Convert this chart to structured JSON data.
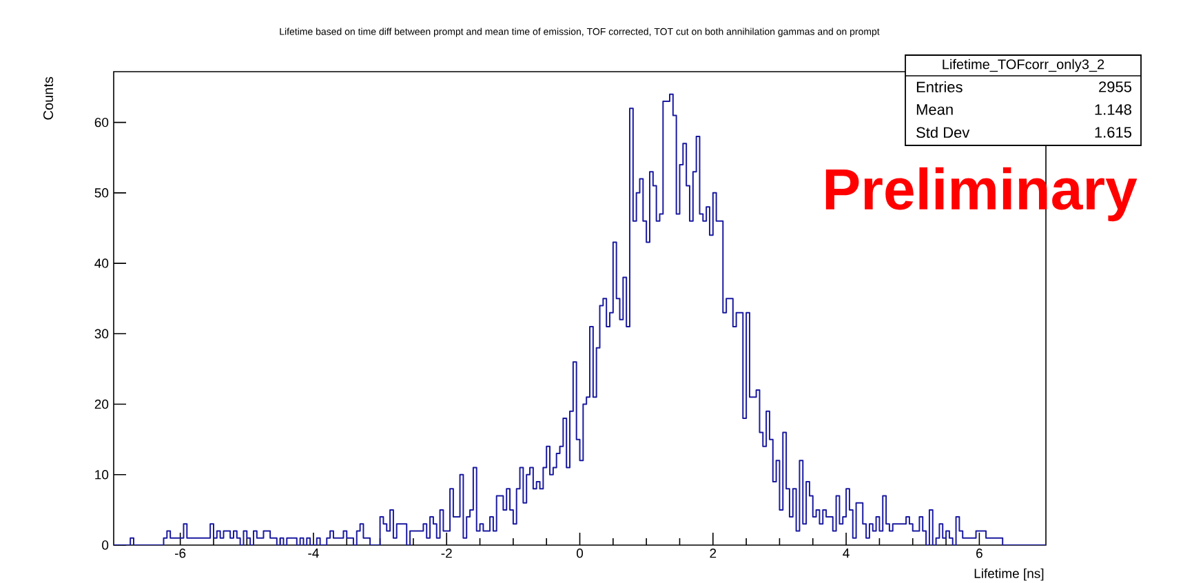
{
  "chart_data": {
    "type": "histogram",
    "title": "Lifetime based on time diff between prompt and mean time of emission, TOF corrected, TOT cut on both annihilation gammas and on prompt",
    "xlabel": "Lifetime [ns]",
    "ylabel": "Counts",
    "color": "#1a1aa0",
    "xlim": [
      -7,
      7
    ],
    "ylim": [
      0,
      67.2
    ],
    "xticks": [
      -6,
      -4,
      -2,
      0,
      2,
      4,
      6
    ],
    "yticks": [
      0,
      10,
      20,
      30,
      40,
      50,
      60
    ],
    "bins": [
      -7,
      -6.95,
      -6.9,
      -6.85,
      -6.8,
      -6.75,
      -6.7,
      -6.65,
      -6.6,
      -6.55,
      -6.5,
      -6.45,
      -6.4,
      -6.35,
      -6.3,
      -6.25,
      -6.2,
      -6.15,
      -6.1,
      -6.05,
      -6,
      -5.95,
      -5.9,
      -5.85,
      -5.8,
      -5.75,
      -5.7,
      -5.65,
      -5.6,
      -5.55,
      -5.5,
      -5.45,
      -5.4,
      -5.35,
      -5.3,
      -5.25,
      -5.2,
      -5.15,
      -5.1,
      -5.05,
      -5,
      -4.95,
      -4.9,
      -4.85,
      -4.8,
      -4.75,
      -4.7,
      -4.65,
      -4.6,
      -4.55,
      -4.5,
      -4.45,
      -4.4,
      -4.35,
      -4.3,
      -4.25,
      -4.2,
      -4.15,
      -4.1,
      -4.05,
      -4,
      -3.95,
      -3.9,
      -3.85,
      -3.8,
      -3.75,
      -3.7,
      -3.65,
      -3.6,
      -3.55,
      -3.5,
      -3.45,
      -3.4,
      -3.35,
      -3.3,
      -3.25,
      -3.2,
      -3.15,
      -3.1,
      -3.05,
      -3,
      -2.95,
      -2.9,
      -2.85,
      -2.8,
      -2.75,
      -2.7,
      -2.65,
      -2.6,
      -2.55,
      -2.5,
      -2.45,
      -2.4,
      -2.35,
      -2.3,
      -2.25,
      -2.2,
      -2.15,
      -2.1,
      -2.05,
      -2,
      -1.95,
      -1.9,
      -1.85,
      -1.8,
      -1.75,
      -1.7,
      -1.65,
      -1.6,
      -1.55,
      -1.5,
      -1.45,
      -1.4,
      -1.35,
      -1.3,
      -1.25,
      -1.2,
      -1.15,
      -1.1,
      -1.05,
      -1,
      -0.95,
      -0.9,
      -0.85,
      -0.8,
      -0.75,
      -0.7,
      -0.65,
      -0.6,
      -0.55,
      -0.5,
      -0.45,
      -0.4,
      -0.35,
      -0.3,
      -0.25,
      -0.2,
      -0.15,
      -0.1,
      -0.05,
      0,
      0.05,
      0.1,
      0.15,
      0.2,
      0.25,
      0.3,
      0.35,
      0.4,
      0.45,
      0.5,
      0.55,
      0.6,
      0.65,
      0.7,
      0.75,
      0.8,
      0.85,
      0.9,
      0.95,
      1,
      1.05,
      1.1,
      1.15,
      1.2,
      1.25,
      1.3,
      1.35,
      1.4,
      1.45,
      1.5,
      1.55,
      1.6,
      1.65,
      1.7,
      1.75,
      1.8,
      1.85,
      1.9,
      1.95,
      2,
      2.05,
      2.1,
      2.15,
      2.2,
      2.25,
      2.3,
      2.35,
      2.4,
      2.45,
      2.5,
      2.55,
      2.6,
      2.65,
      2.7,
      2.75,
      2.8,
      2.85,
      2.9,
      2.95,
      3,
      3.05,
      3.1,
      3.15,
      3.2,
      3.25,
      3.3,
      3.35,
      3.4,
      3.45,
      3.5,
      3.55,
      3.6,
      3.65,
      3.7,
      3.75,
      3.8,
      3.85,
      3.9,
      3.95,
      4,
      4.05,
      4.1,
      4.15,
      4.2,
      4.25,
      4.3,
      4.35,
      4.4,
      4.45,
      4.5,
      4.55,
      4.6,
      4.65,
      4.7,
      4.75,
      4.8,
      4.85,
      4.9,
      4.95,
      5,
      5.05,
      5.1,
      5.15,
      5.2,
      5.25,
      5.3,
      5.35,
      5.4,
      5.45,
      5.5,
      5.55,
      5.6,
      5.65,
      5.7,
      5.75,
      5.8,
      5.85,
      5.9,
      5.95,
      6,
      6.05,
      6.1,
      6.15,
      6.2,
      6.25,
      6.3,
      6.35,
      6.4,
      6.45,
      6.5,
      6.55,
      6.6,
      6.65,
      6.7,
      6.75,
      6.8,
      6.85,
      6.9,
      6.95,
      7
    ],
    "values": [
      0,
      0,
      0,
      0,
      0,
      1,
      0,
      0,
      0,
      0,
      0,
      0,
      0,
      0,
      0,
      1,
      2,
      1,
      1,
      1,
      1,
      3,
      1,
      1,
      1,
      1,
      1,
      1,
      1,
      3,
      1,
      2,
      1,
      2,
      2,
      1,
      2,
      1,
      0,
      2,
      1,
      0,
      2,
      1,
      1,
      2,
      2,
      1,
      1,
      0,
      1,
      0,
      1,
      1,
      1,
      0,
      1,
      0,
      1,
      0,
      0,
      1,
      0,
      0,
      1,
      2,
      1,
      1,
      1,
      2,
      1,
      1,
      0,
      2,
      3,
      1,
      1,
      0,
      0,
      0,
      4,
      3,
      2,
      5,
      1,
      3,
      3,
      3,
      0,
      2,
      2,
      2,
      2,
      3,
      1,
      4,
      3,
      1,
      5,
      2,
      2,
      8,
      4,
      4,
      10,
      1,
      4,
      5,
      11,
      2,
      3,
      2,
      2,
      4,
      2,
      7,
      7,
      5,
      8,
      5,
      3,
      8,
      11,
      6,
      10,
      11,
      8,
      9,
      8,
      11,
      14,
      10,
      11,
      13,
      14,
      18,
      11,
      19,
      26,
      15,
      12,
      20,
      21,
      31,
      21,
      28,
      34,
      35,
      31,
      33,
      43,
      35,
      32,
      38,
      31,
      62,
      46,
      50,
      52,
      46,
      43,
      53,
      51,
      46,
      47,
      63,
      63,
      64,
      61,
      47,
      54,
      57,
      51,
      46,
      53,
      58,
      47,
      46,
      48,
      44,
      50,
      46,
      46,
      33,
      35,
      35,
      31,
      33,
      33,
      18,
      33,
      21,
      21,
      22,
      16,
      14,
      19,
      15,
      9,
      12,
      5,
      16,
      8,
      4,
      8,
      2,
      12,
      3,
      9,
      7,
      4,
      5,
      3,
      5,
      4,
      4,
      2,
      7,
      3,
      4,
      8,
      5,
      1,
      6,
      6,
      3,
      1,
      3,
      2,
      4,
      2,
      7,
      3,
      2,
      3,
      3,
      3,
      3,
      4,
      3,
      2,
      2,
      4,
      2,
      0,
      5,
      0,
      1,
      3,
      1,
      2,
      1,
      0,
      4,
      2,
      1,
      1,
      1,
      1,
      2,
      2,
      2,
      1,
      1,
      1,
      1,
      1,
      0,
      0,
      0,
      0,
      0,
      0,
      0,
      0,
      0,
      0,
      0,
      0,
      0
    ],
    "annotations": [
      "Lifetime_TOFcorr_only3_2",
      "Entries",
      "2955",
      "Mean",
      "1.148",
      "Std Dev",
      "1.615",
      "Preliminary"
    ]
  }
}
